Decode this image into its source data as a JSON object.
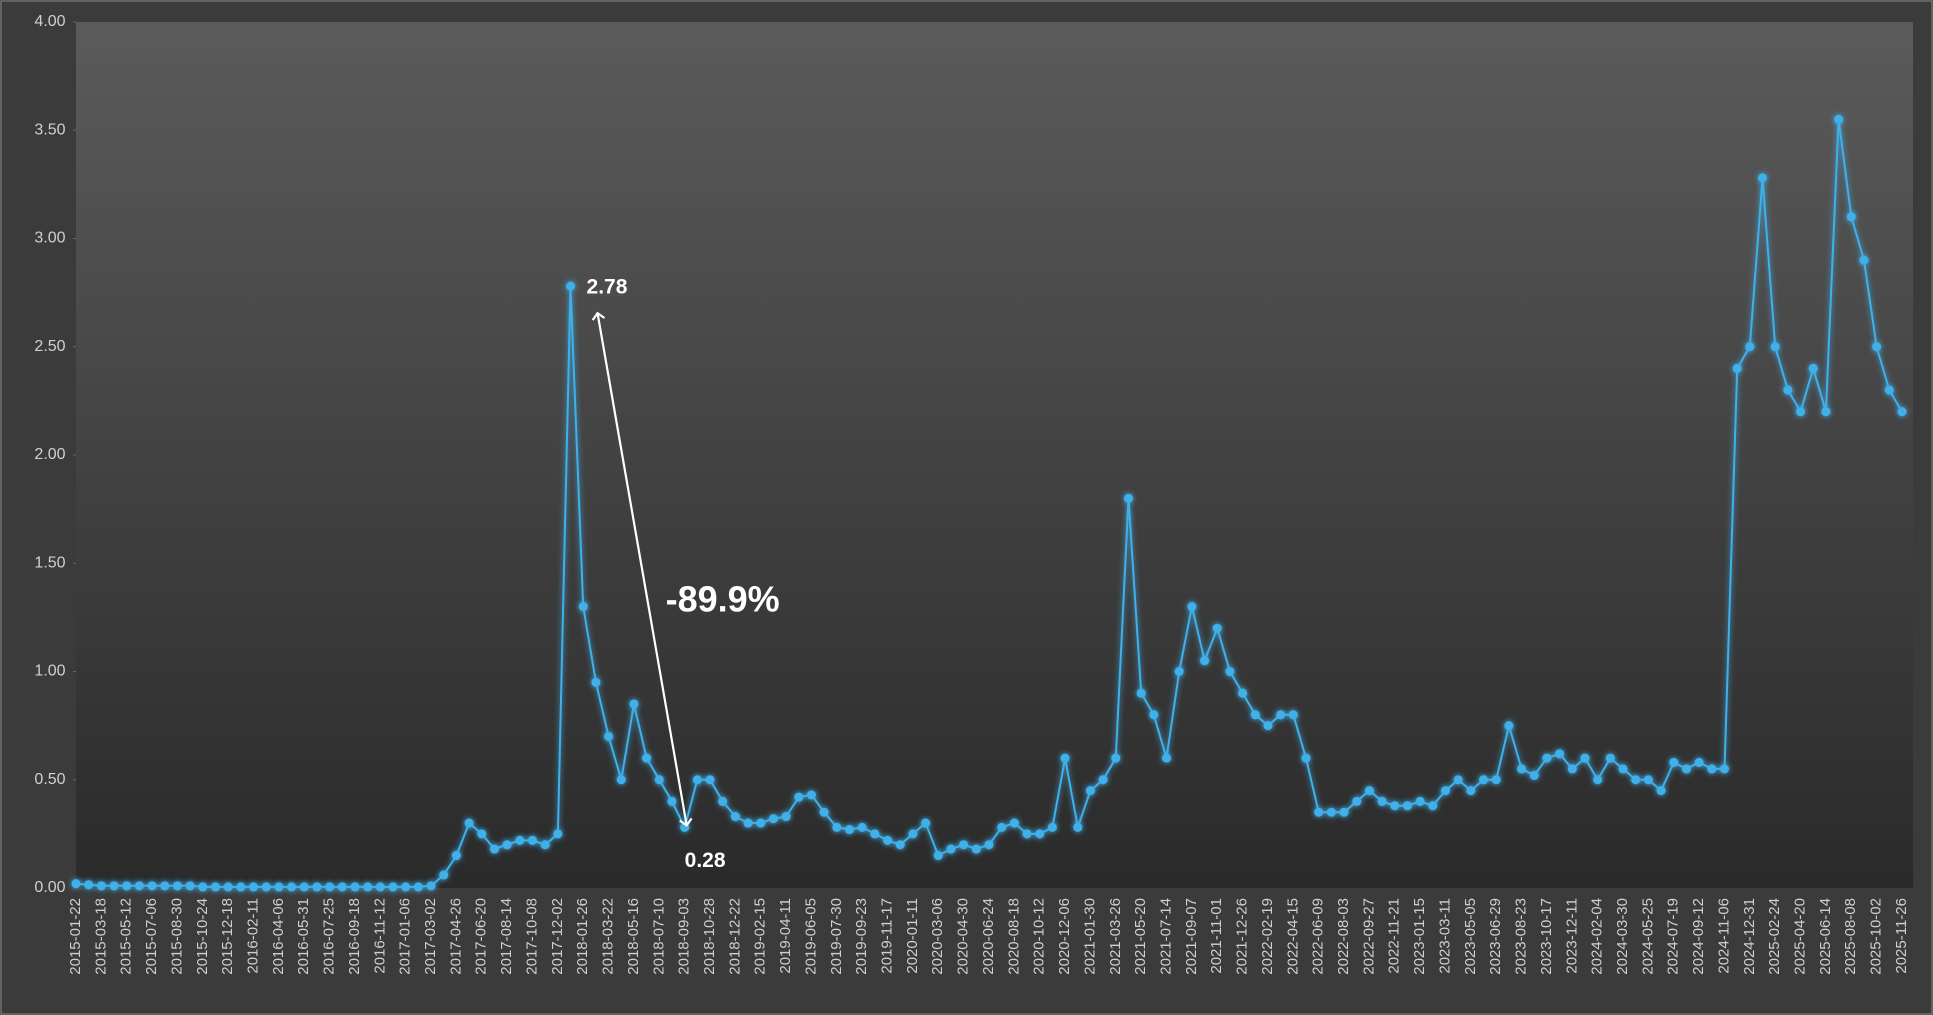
{
  "chart_data": {
    "type": "line",
    "categories": [
      "2015-01-22",
      null,
      "2015-03-18",
      null,
      "2015-05-12",
      null,
      "2015-07-06",
      null,
      "2015-08-30",
      null,
      "2015-10-24",
      null,
      "2015-12-18",
      null,
      "2016-02-11",
      null,
      "2016-04-06",
      null,
      "2016-05-31",
      null,
      "2016-07-25",
      null,
      "2016-09-18",
      null,
      "2016-11-12",
      null,
      "2017-01-06",
      null,
      "2017-03-02",
      null,
      "2017-04-26",
      null,
      "2017-06-20",
      null,
      "2017-08-14",
      null,
      "2017-10-08",
      null,
      "2017-12-02",
      null,
      "2018-01-26",
      null,
      "2018-03-22",
      null,
      "2018-05-16",
      null,
      "2018-07-10",
      null,
      "2018-09-03",
      null,
      "2018-10-28",
      null,
      "2018-12-22",
      null,
      "2019-02-15",
      null,
      "2019-04-11",
      null,
      "2019-06-05",
      null,
      "2019-07-30",
      null,
      "2019-09-23",
      null,
      "2019-11-17",
      null,
      "2020-01-11",
      null,
      "2020-03-06",
      null,
      "2020-04-30",
      null,
      "2020-06-24",
      null,
      "2020-08-18",
      null,
      "2020-10-12",
      null,
      "2020-12-06",
      null,
      "2021-01-30",
      null,
      "2021-03-26",
      null,
      "2021-05-20",
      null,
      "2021-07-14",
      null,
      "2021-09-07",
      null,
      "2021-11-01",
      null,
      "2021-12-26",
      null,
      "2022-02-19",
      null,
      "2022-04-15",
      null,
      "2022-06-09",
      null,
      "2022-08-03",
      null,
      "2022-09-27",
      null,
      "2022-11-21",
      null,
      "2023-01-15",
      null,
      "2023-03-11",
      null,
      "2023-05-05",
      null,
      "2023-06-29",
      null,
      "2023-08-23",
      null,
      "2023-10-17",
      null,
      "2023-12-11",
      null,
      "2024-02-04",
      null,
      "2024-03-30",
      null,
      "2024-05-25",
      null,
      "2024-07-19",
      null,
      "2024-09-12",
      null,
      "2024-11-06",
      null,
      "2024-12-31",
      null,
      "2025-02-24",
      null,
      "2025-04-20",
      null,
      "2025-06-14",
      null,
      "2025-08-08",
      null,
      "2025-10-02",
      null,
      "2025-11-26"
    ],
    "values": [
      0.02,
      0.015,
      0.01,
      0.01,
      0.01,
      0.01,
      0.01,
      0.01,
      0.01,
      0.01,
      0.005,
      0.005,
      0.005,
      0.005,
      0.005,
      0.005,
      0.005,
      0.005,
      0.005,
      0.005,
      0.005,
      0.005,
      0.005,
      0.005,
      0.005,
      0.005,
      0.005,
      0.005,
      0.01,
      0.06,
      0.15,
      0.3,
      0.25,
      0.18,
      0.2,
      0.22,
      0.22,
      0.2,
      0.25,
      2.78,
      1.3,
      0.95,
      0.7,
      0.5,
      0.85,
      0.6,
      0.5,
      0.4,
      0.28,
      0.5,
      0.5,
      0.4,
      0.33,
      0.3,
      0.3,
      0.32,
      0.33,
      0.42,
      0.43,
      0.35,
      0.28,
      0.27,
      0.28,
      0.25,
      0.22,
      0.2,
      0.25,
      0.3,
      0.15,
      0.18,
      0.2,
      0.18,
      0.2,
      0.28,
      0.3,
      0.25,
      0.25,
      0.28,
      0.6,
      0.28,
      0.45,
      0.5,
      0.6,
      1.8,
      0.9,
      0.8,
      0.6,
      1.0,
      1.3,
      1.05,
      1.2,
      1.0,
      0.9,
      0.8,
      0.75,
      0.8,
      0.8,
      0.6,
      0.35,
      0.35,
      0.35,
      0.4,
      0.45,
      0.4,
      0.38,
      0.38,
      0.4,
      0.38,
      0.45,
      0.5,
      0.45,
      0.5,
      0.5,
      0.75,
      0.55,
      0.52,
      0.6,
      0.62,
      0.55,
      0.6,
      0.5,
      0.6,
      0.55,
      0.5,
      0.5,
      0.45,
      0.58,
      0.55,
      0.58,
      0.55,
      0.55,
      2.4,
      2.5,
      3.28,
      2.5,
      2.3,
      2.2,
      2.4,
      2.2,
      3.55,
      3.1,
      2.9,
      2.5,
      2.3,
      2.2
    ],
    "color": "#3fb0ea",
    "ylim": [
      0,
      4
    ],
    "yticks": [
      {
        "value": 0,
        "label": "0.00"
      },
      {
        "value": 0.5,
        "label": "0.50"
      },
      {
        "value": 1,
        "label": "1.00"
      },
      {
        "value": 1.5,
        "label": "1.50"
      },
      {
        "value": 2,
        "label": "2.00"
      },
      {
        "value": 2.5,
        "label": "2.50"
      },
      {
        "value": 3,
        "label": "3.00"
      },
      {
        "value": 3.5,
        "label": "3.50"
      },
      {
        "value": 4,
        "label": "4.00"
      }
    ],
    "annotations": [
      {
        "text": "-89.9%"
      }
    ]
  }
}
